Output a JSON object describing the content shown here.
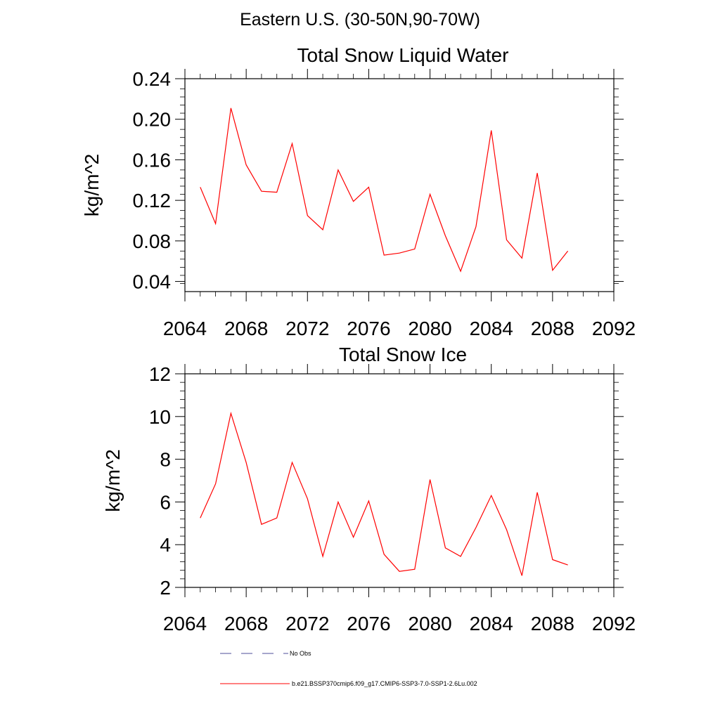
{
  "figure": {
    "suptitle": "Eastern U.S. (30-50N,90-70W)"
  },
  "chart_data": [
    {
      "type": "line",
      "title": "Total Snow Liquid Water",
      "xlabel": "",
      "ylabel": "kg/m^2",
      "xlim": [
        2064,
        2092
      ],
      "ylim": [
        0.03,
        0.24
      ],
      "xticks": [
        2064,
        2068,
        2072,
        2076,
        2080,
        2084,
        2088,
        2092
      ],
      "yticks": [
        0.04,
        0.08,
        0.12,
        0.16,
        0.2,
        0.24
      ],
      "ytick_labels": [
        "0.04",
        "0.08",
        "0.12",
        "0.16",
        "0.20",
        "0.24"
      ],
      "grid": false,
      "series": [
        {
          "name": "b.e21.BSSP370cmip6.f09_g17.CMIP6-SSP3-7.0-SSP1-2.6Lu.002",
          "color": "#ff0000",
          "x": [
            2065,
            2066,
            2067,
            2068,
            2069,
            2070,
            2071,
            2072,
            2073,
            2074,
            2075,
            2076,
            2077,
            2078,
            2079,
            2080,
            2081,
            2082,
            2083,
            2084,
            2085,
            2086,
            2087,
            2088,
            2089
          ],
          "y": [
            0.133,
            0.097,
            0.211,
            0.155,
            0.129,
            0.128,
            0.176,
            0.105,
            0.091,
            0.15,
            0.119,
            0.133,
            0.066,
            0.068,
            0.072,
            0.126,
            0.085,
            0.05,
            0.094,
            0.189,
            0.081,
            0.063,
            0.147,
            0.051,
            0.07
          ]
        }
      ]
    },
    {
      "type": "line",
      "title": "Total Snow Ice",
      "xlabel": "",
      "ylabel": "kg/m^2",
      "xlim": [
        2064,
        2092
      ],
      "ylim": [
        2,
        12
      ],
      "xticks": [
        2064,
        2068,
        2072,
        2076,
        2080,
        2084,
        2088,
        2092
      ],
      "yticks": [
        2,
        4,
        6,
        8,
        10,
        12
      ],
      "ytick_labels": [
        "2",
        "4",
        "6",
        "8",
        "10",
        "12"
      ],
      "grid": false,
      "series": [
        {
          "name": "b.e21.BSSP370cmip6.f09_g17.CMIP6-SSP3-7.0-SSP1-2.6Lu.002",
          "color": "#ff0000",
          "x": [
            2065,
            2066,
            2067,
            2068,
            2069,
            2070,
            2071,
            2072,
            2073,
            2074,
            2075,
            2076,
            2077,
            2078,
            2079,
            2080,
            2081,
            2082,
            2083,
            2084,
            2085,
            2086,
            2087,
            2088,
            2089
          ],
          "y": [
            5.25,
            6.85,
            10.15,
            7.85,
            4.95,
            5.25,
            7.85,
            6.15,
            3.45,
            6.0,
            4.35,
            6.05,
            3.55,
            2.75,
            2.85,
            7.05,
            3.85,
            3.45,
            4.8,
            6.3,
            4.7,
            2.55,
            6.45,
            3.3,
            3.05
          ]
        }
      ]
    }
  ],
  "legend": {
    "placement": "bottom",
    "items": [
      {
        "label": "No Obs",
        "color": "#4d4d99",
        "style": "dashed"
      },
      {
        "label": "b.e21.BSSP370cmip6.f09_g17.CMIP6-SSP3-7.0-SSP1-2.6Lu.002",
        "color": "#ff0000",
        "style": "solid"
      }
    ]
  }
}
